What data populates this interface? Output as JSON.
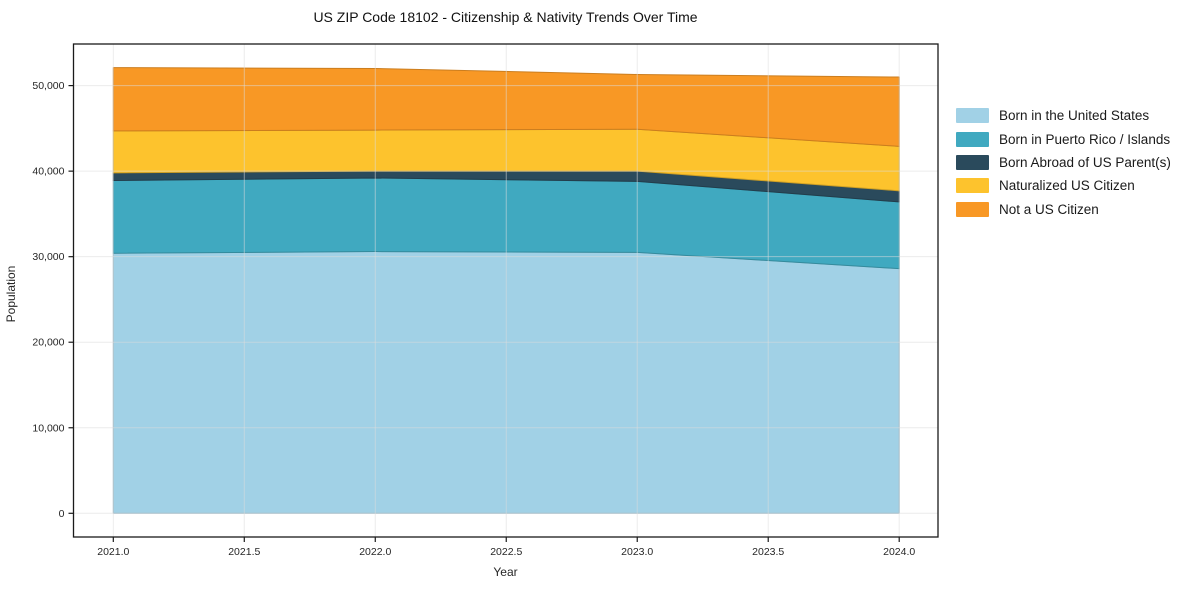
{
  "figure": {
    "background": "#ffffff",
    "text_color": "#262626",
    "spine_color": "#1a1a1a",
    "grid_color": "#dcdcdc"
  },
  "chart_data": {
    "type": "area",
    "stacked": true,
    "title": "US ZIP Code 18102 - Citizenship & Nativity Trends Over Time",
    "xlabel": "Year",
    "ylabel": "Population",
    "x": [
      2021,
      2022,
      2023,
      2024
    ],
    "series": [
      {
        "name": "Born in the United States",
        "color": "#a1d1e6",
        "values": [
          30400,
          30600,
          30500,
          28600
        ]
      },
      {
        "name": "Born in Puerto Rico / Islands",
        "color": "#40a9c0",
        "values": [
          8500,
          8600,
          8300,
          7800
        ]
      },
      {
        "name": "Born Abroad of US Parent(s)",
        "color": "#2a4a5c",
        "values": [
          900,
          800,
          1200,
          1300
        ]
      },
      {
        "name": "Naturalized US Citizen",
        "color": "#fdc32d",
        "values": [
          4900,
          4800,
          4900,
          5200
        ]
      },
      {
        "name": "Not a US Citizen",
        "color": "#f89825",
        "values": [
          7400,
          7200,
          6400,
          8100
        ]
      }
    ],
    "totals": [
      52100,
      52000,
      51300,
      51000
    ],
    "x_tick_values": [
      2021.0,
      2021.5,
      2022.0,
      2022.5,
      2023.0,
      2023.5,
      2024.0
    ],
    "x_tick_labels": [
      "2021.0",
      "2021.5",
      "2022.0",
      "2022.5",
      "2023.0",
      "2023.5",
      "2024.0"
    ],
    "y_tick_values": [
      0,
      10000,
      20000,
      30000,
      40000,
      50000
    ],
    "y_tick_labels": [
      "0",
      "10,000",
      "20,000",
      "30,000",
      "40,000",
      "50,000"
    ],
    "ylim": [
      0,
      50000
    ],
    "grid": true,
    "legend_position": "right-outside"
  }
}
